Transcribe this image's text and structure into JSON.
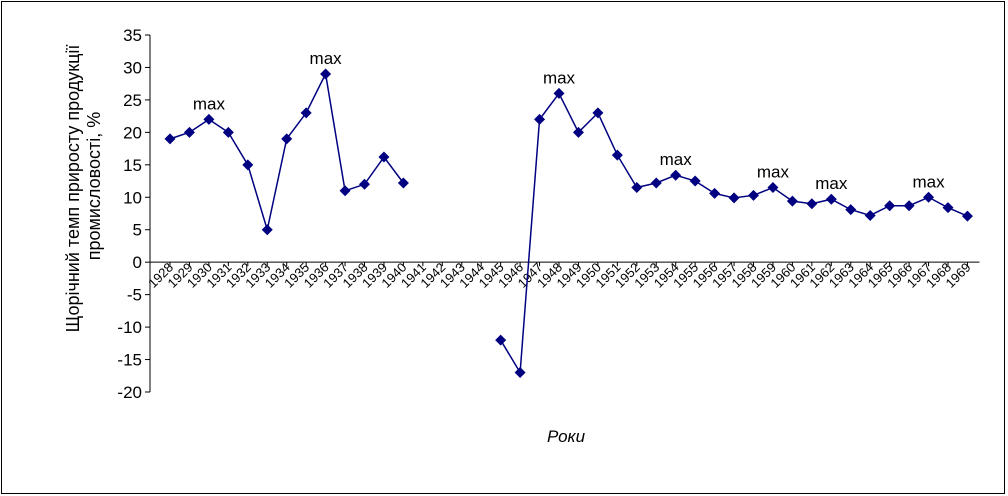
{
  "chart_data": {
    "type": "line",
    "ylabel": "Щорічний темп приросту продукції промисловості, %",
    "xlabel": "Роки",
    "ylim": [
      -20,
      35
    ],
    "yticks": [
      35,
      30,
      25,
      20,
      15,
      10,
      5,
      0,
      -5,
      -10,
      -15,
      -20
    ],
    "ytick_labels": [
      "35",
      "30",
      "25",
      "20",
      "15",
      "10",
      "5",
      "0",
      "-5",
      "-10",
      "-15",
      "-20"
    ],
    "categories": [
      "1928",
      "1929",
      "1930",
      "1931",
      "1932",
      "1933",
      "1934",
      "1935",
      "1936",
      "1937",
      "1938",
      "1939",
      "1940",
      "1941",
      "1942",
      "1943",
      "1944",
      "1945",
      "1946",
      "1947",
      "1948",
      "1949",
      "1950",
      "1951",
      "1952",
      "1953",
      "1954",
      "1955",
      "1956",
      "1957",
      "1958",
      "1959",
      "1960",
      "1961",
      "1962",
      "1963",
      "1964",
      "1965",
      "1966",
      "1967",
      "1968",
      "1969"
    ],
    "grid": false,
    "series": [
      {
        "color": "#000080",
        "marker": "diamond",
        "values": [
          19,
          20,
          22,
          20,
          15,
          5,
          19,
          23,
          29,
          11,
          12,
          16.2,
          12.2,
          null,
          null,
          null,
          null,
          -12,
          -17,
          22,
          26,
          20,
          23,
          16.5,
          11.5,
          12.2,
          13.4,
          12.5,
          10.6,
          9.9,
          10.3,
          11.5,
          9.4,
          9.0,
          9.7,
          8.1,
          7.2,
          8.7,
          8.7,
          10.0,
          8.4,
          7.1
        ]
      }
    ],
    "annotations": [
      {
        "text": "max",
        "category": "1930",
        "value": 22
      },
      {
        "text": "max",
        "category": "1936",
        "value": 29
      },
      {
        "text": "max",
        "category": "1948",
        "value": 26
      },
      {
        "text": "max",
        "category": "1954",
        "value": 13.4
      },
      {
        "text": "max",
        "category": "1959",
        "value": 11.5
      },
      {
        "text": "max",
        "category": "1962",
        "value": 9.7
      },
      {
        "text": "max",
        "category": "1967",
        "value": 10.0
      }
    ]
  }
}
